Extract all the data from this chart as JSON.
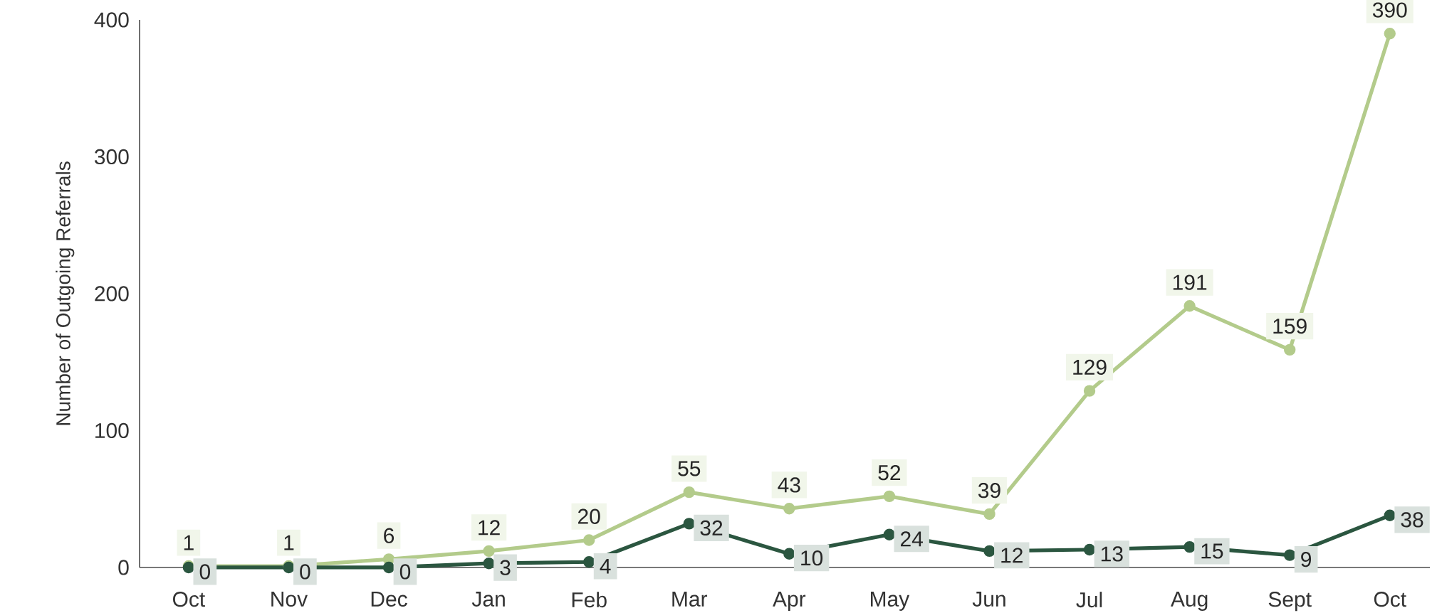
{
  "chart_data": {
    "type": "line",
    "ylabel": "Number of Outgoing Referrals",
    "categories": [
      "Oct",
      "Nov",
      "Dec",
      "Jan",
      "Feb",
      "Mar",
      "Apr",
      "May",
      "Jun",
      "Jul",
      "Aug",
      "Sept",
      "Oct"
    ],
    "series": [
      {
        "color": "#b3cb8b",
        "values": [
          1,
          1,
          6,
          12,
          20,
          55,
          43,
          52,
          39,
          129,
          191,
          159,
          390
        ]
      },
      {
        "color": "#2b5640",
        "values": [
          0,
          0,
          0,
          3,
          4,
          32,
          10,
          24,
          12,
          13,
          15,
          9,
          38
        ]
      }
    ],
    "ylim": [
      0,
      400
    ],
    "yticks": [
      0,
      100,
      200,
      300,
      400
    ],
    "grid": false,
    "marker": "circle",
    "line_style": "solid",
    "data_labels": true
  }
}
